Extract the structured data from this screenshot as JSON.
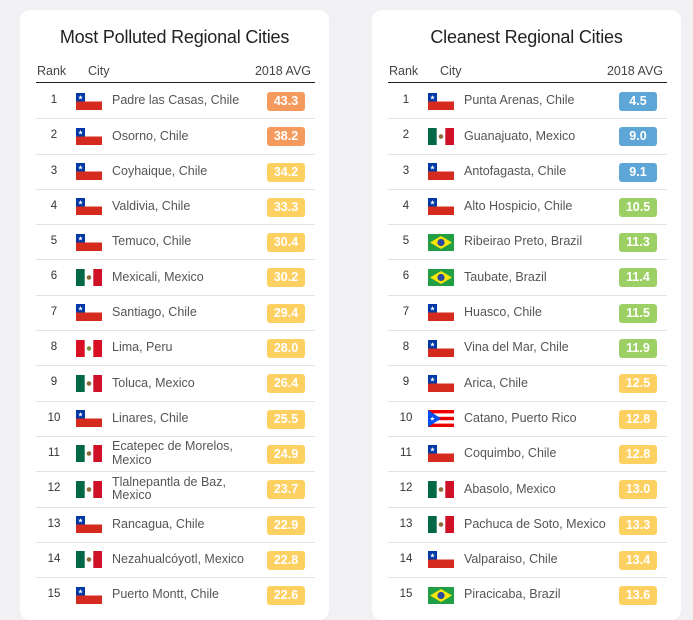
{
  "left": {
    "title": "Most Polluted Regional Cities",
    "headers": {
      "rank": "Rank",
      "city": "City",
      "avg": "2018 AVG"
    },
    "rows": [
      {
        "rank": "1",
        "city": "Padre las Casas, Chile",
        "avg": "43.3",
        "flag": "chile",
        "color": "#f59a5d"
      },
      {
        "rank": "2",
        "city": "Osorno, Chile",
        "avg": "38.2",
        "flag": "chile",
        "color": "#f59a5d"
      },
      {
        "rank": "3",
        "city": "Coyhaique, Chile",
        "avg": "34.2",
        "flag": "chile",
        "color": "#fdd062"
      },
      {
        "rank": "4",
        "city": "Valdivia, Chile",
        "avg": "33.3",
        "flag": "chile",
        "color": "#fdd062"
      },
      {
        "rank": "5",
        "city": "Temuco, Chile",
        "avg": "30.4",
        "flag": "chile",
        "color": "#fdd062"
      },
      {
        "rank": "6",
        "city": "Mexicali, Mexico",
        "avg": "30.2",
        "flag": "mexico",
        "color": "#fdd062"
      },
      {
        "rank": "7",
        "city": "Santiago, Chile",
        "avg": "29.4",
        "flag": "chile",
        "color": "#fdd062"
      },
      {
        "rank": "8",
        "city": "Lima, Peru",
        "avg": "28.0",
        "flag": "peru",
        "color": "#fdd062"
      },
      {
        "rank": "9",
        "city": "Toluca, Mexico",
        "avg": "26.4",
        "flag": "mexico",
        "color": "#fdd062"
      },
      {
        "rank": "10",
        "city": "Linares, Chile",
        "avg": "25.5",
        "flag": "chile",
        "color": "#fdd062"
      },
      {
        "rank": "11",
        "city": "Ecatepec de Morelos, Mexico",
        "avg": "24.9",
        "flag": "mexico",
        "color": "#fdd062"
      },
      {
        "rank": "12",
        "city": "Tlalnepantla de Baz, Mexico",
        "avg": "23.7",
        "flag": "mexico",
        "color": "#fdd062"
      },
      {
        "rank": "13",
        "city": "Rancagua, Chile",
        "avg": "22.9",
        "flag": "chile",
        "color": "#fdd062"
      },
      {
        "rank": "14",
        "city": "Nezahualcóyotl, Mexico",
        "avg": "22.8",
        "flag": "mexico",
        "color": "#fdd062"
      },
      {
        "rank": "15",
        "city": "Puerto Montt, Chile",
        "avg": "22.6",
        "flag": "chile",
        "color": "#fdd062"
      }
    ]
  },
  "right": {
    "title": "Cleanest Regional Cities",
    "headers": {
      "rank": "Rank",
      "city": "City",
      "avg": "2018 AVG"
    },
    "rows": [
      {
        "rank": "1",
        "city": "Punta Arenas, Chile",
        "avg": "4.5",
        "flag": "chile",
        "color": "#5fa6d8"
      },
      {
        "rank": "2",
        "city": "Guanajuato, Mexico",
        "avg": "9.0",
        "flag": "mexico",
        "color": "#5fa6d8"
      },
      {
        "rank": "3",
        "city": "Antofagasta, Chile",
        "avg": "9.1",
        "flag": "chile",
        "color": "#5fa6d8"
      },
      {
        "rank": "4",
        "city": "Alto Hospicio, Chile",
        "avg": "10.5",
        "flag": "chile",
        "color": "#9dd064"
      },
      {
        "rank": "5",
        "city": "Ribeirao Preto, Brazil",
        "avg": "11.3",
        "flag": "brazil",
        "color": "#9dd064"
      },
      {
        "rank": "6",
        "city": "Taubate, Brazil",
        "avg": "11.4",
        "flag": "brazil",
        "color": "#9dd064"
      },
      {
        "rank": "7",
        "city": "Huasco, Chile",
        "avg": "11.5",
        "flag": "chile",
        "color": "#9dd064"
      },
      {
        "rank": "8",
        "city": "Vina del Mar, Chile",
        "avg": "11.9",
        "flag": "chile",
        "color": "#9dd064"
      },
      {
        "rank": "9",
        "city": "Arica, Chile",
        "avg": "12.5",
        "flag": "chile",
        "color": "#fdd062"
      },
      {
        "rank": "10",
        "city": "Catano, Puerto Rico",
        "avg": "12.8",
        "flag": "puerto-rico",
        "color": "#fdd062"
      },
      {
        "rank": "11",
        "city": "Coquimbo, Chile",
        "avg": "12.8",
        "flag": "chile",
        "color": "#fdd062"
      },
      {
        "rank": "12",
        "city": "Abasolo, Mexico",
        "avg": "13.0",
        "flag": "mexico",
        "color": "#fdd062"
      },
      {
        "rank": "13",
        "city": "Pachuca de Soto, Mexico",
        "avg": "13.3",
        "flag": "mexico",
        "color": "#fdd062"
      },
      {
        "rank": "14",
        "city": "Valparaiso, Chile",
        "avg": "13.4",
        "flag": "chile",
        "color": "#fdd062"
      },
      {
        "rank": "15",
        "city": "Piracicaba, Brazil",
        "avg": "13.6",
        "flag": "brazil",
        "color": "#fdd062"
      }
    ]
  }
}
